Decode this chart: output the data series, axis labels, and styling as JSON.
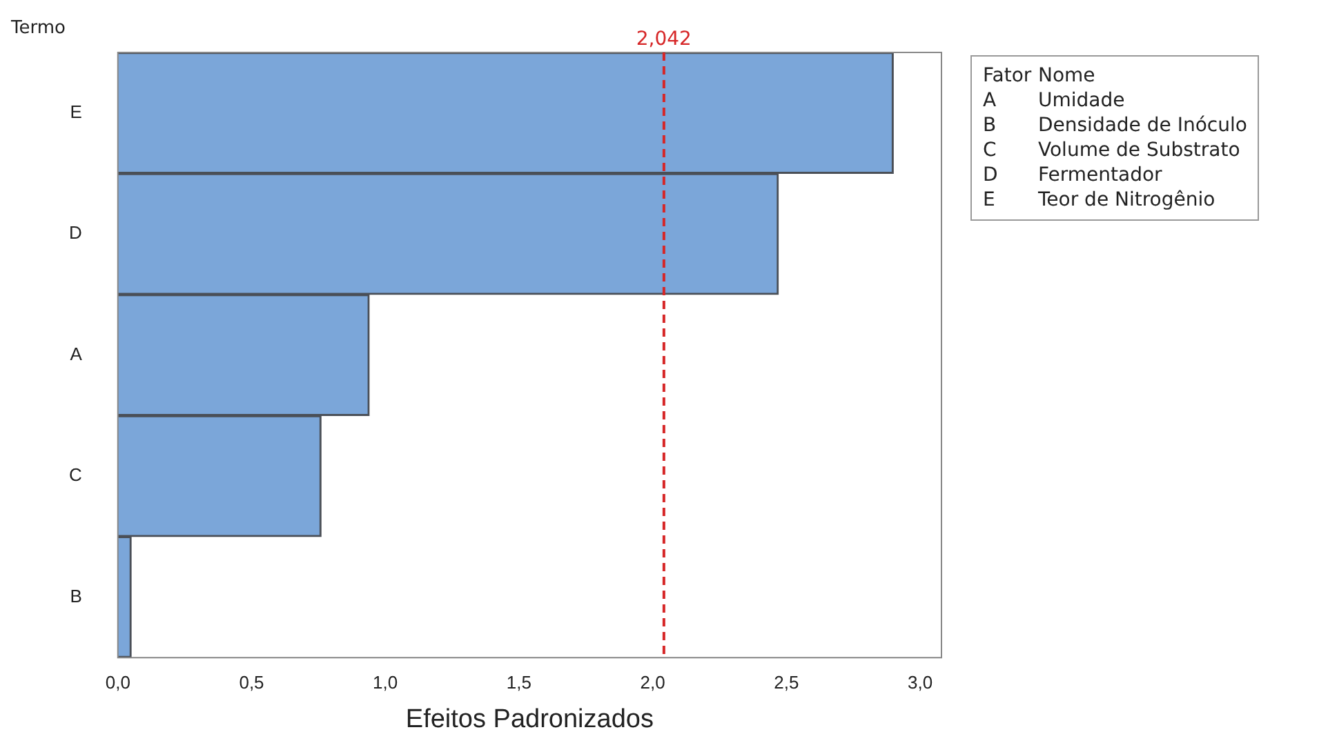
{
  "chart_data": {
    "type": "bar",
    "orientation": "horizontal",
    "ylabel": "Termo",
    "xlabel": "Efeitos Padronizados",
    "categories": [
      "E",
      "D",
      "A",
      "C",
      "B"
    ],
    "values": [
      2.9,
      2.47,
      0.94,
      0.76,
      0.05
    ],
    "color": "#7ba6d9",
    "xlim": [
      0,
      3.08
    ],
    "xticks": [
      {
        "value": 0,
        "label": "0,0"
      },
      {
        "value": 0.5,
        "label": "0,5"
      },
      {
        "value": 1,
        "label": "1,0"
      },
      {
        "value": 1.5,
        "label": "1,5"
      },
      {
        "value": 2,
        "label": "2,0"
      },
      {
        "value": 2.5,
        "label": "2,5"
      },
      {
        "value": 3,
        "label": "3,0"
      }
    ],
    "ref_lines": [
      {
        "axis": "x",
        "value": 2.042,
        "label": "2,042",
        "color": "#d62728",
        "line_style": "dashed"
      }
    ],
    "annotations": [
      "Fator",
      "Nome",
      "A",
      "Umidade",
      "B",
      "Densidade de Inóculo",
      "C",
      "Volume de Substrato",
      "D",
      "Fermentador",
      "E",
      "Teor de Nitrogênio"
    ],
    "grid": false,
    "legend": false
  }
}
